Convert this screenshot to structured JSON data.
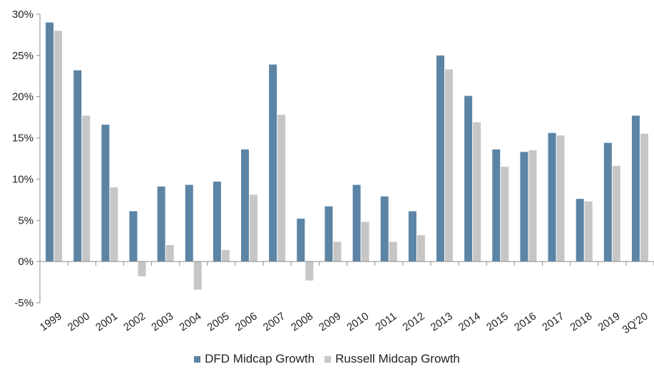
{
  "chart_data": {
    "type": "bar",
    "categories": [
      "1999",
      "2000",
      "2001",
      "2002",
      "2003",
      "2004",
      "2005",
      "2006",
      "2007",
      "2008",
      "2009",
      "2010",
      "2011",
      "2012",
      "2013",
      "2014",
      "2015",
      "2016",
      "2017",
      "2018",
      "2019",
      "3Q'20"
    ],
    "series": [
      {
        "name": "DFD Midcap Growth",
        "color": "#5b84a5",
        "values": [
          29.0,
          23.2,
          16.6,
          6.1,
          9.1,
          9.3,
          9.7,
          13.6,
          23.9,
          5.2,
          6.7,
          9.3,
          7.9,
          6.1,
          25.0,
          20.1,
          13.6,
          13.3,
          15.6,
          7.6,
          14.4,
          17.7
        ]
      },
      {
        "name": "Russell Midcap Growth",
        "color": "#c6c6c6",
        "values": [
          28.0,
          17.7,
          9.0,
          -1.8,
          2.0,
          -3.4,
          1.4,
          8.1,
          17.8,
          -2.3,
          2.4,
          4.8,
          2.4,
          3.2,
          23.3,
          16.9,
          11.5,
          13.5,
          15.3,
          7.3,
          11.6,
          15.5
        ]
      }
    ],
    "yticks": [
      "30%",
      "25%",
      "20%",
      "15%",
      "10%",
      "5%",
      "0%",
      "-5%"
    ],
    "ytick_values": [
      30,
      25,
      20,
      15,
      10,
      5,
      0,
      -5
    ],
    "ylim": [
      -5,
      30
    ],
    "grid": false,
    "legend_position": "bottom"
  }
}
